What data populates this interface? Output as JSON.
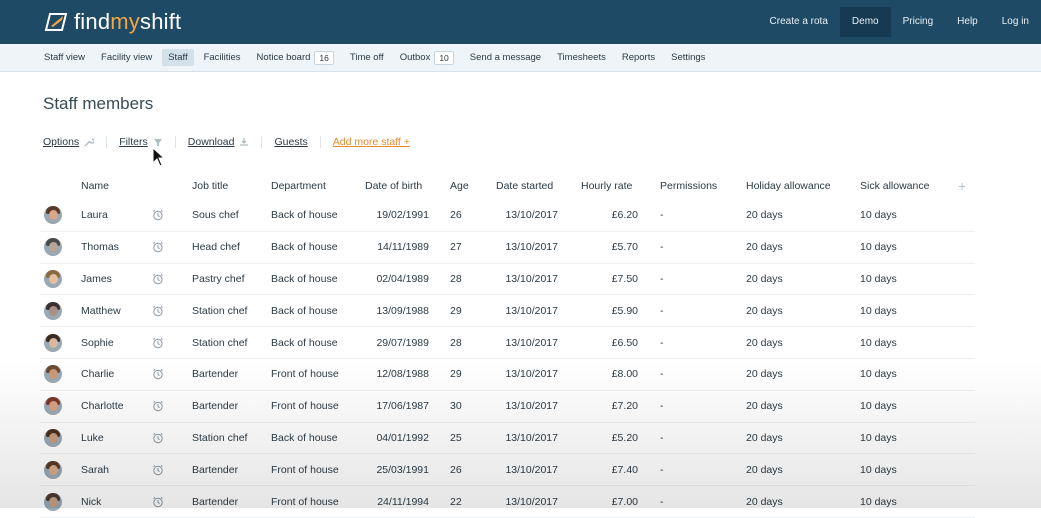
{
  "app": {
    "logo_text_prefix": "find",
    "logo_text_mid": "my",
    "logo_text_suffix": "shift",
    "accent_color": "#f3a443",
    "brand_color": "#1f4a66"
  },
  "topnav": [
    {
      "label": "Create a rota",
      "active": false
    },
    {
      "label": "Demo",
      "active": true
    },
    {
      "label": "Pricing",
      "active": false
    },
    {
      "label": "Help",
      "active": false
    },
    {
      "label": "Log in",
      "active": false
    }
  ],
  "subnav": [
    {
      "label": "Staff view",
      "count": null,
      "active": false
    },
    {
      "label": "Facility view",
      "count": null,
      "active": false
    },
    {
      "label": "Staff",
      "count": null,
      "active": true
    },
    {
      "label": "Facilities",
      "count": null,
      "active": false
    },
    {
      "label": "Notice board",
      "count": "16",
      "active": false
    },
    {
      "label": "Time off",
      "count": null,
      "active": false
    },
    {
      "label": "Outbox",
      "count": "10",
      "active": false
    },
    {
      "label": "Send a message",
      "count": null,
      "active": false
    },
    {
      "label": "Timesheets",
      "count": null,
      "active": false
    },
    {
      "label": "Reports",
      "count": null,
      "active": false
    },
    {
      "label": "Settings",
      "count": null,
      "active": false
    }
  ],
  "page": {
    "title": "Staff members"
  },
  "tools": {
    "options": "Options",
    "filters": "Filters",
    "download": "Download",
    "guests": "Guests",
    "add_staff": "Add more staff +"
  },
  "table": {
    "headers": {
      "name": "Name",
      "job": "Job title",
      "dept": "Department",
      "dob": "Date of birth",
      "age": "Age",
      "started": "Date started",
      "rate": "Hourly rate",
      "perm": "Permissions",
      "hol": "Holiday allowance",
      "sick": "Sick allowance",
      "plus": "+"
    },
    "rows": [
      {
        "name": "Laura",
        "job": "Sous chef",
        "dept": "Back of house",
        "dob": "19/02/1991",
        "age": "26",
        "started": "13/10/2017",
        "rate": "£6.20",
        "perm": "-",
        "hol": "20 days",
        "sick": "10 days",
        "skin": "#d9a88a",
        "hair": "#5a3a2a"
      },
      {
        "name": "Thomas",
        "job": "Head chef",
        "dept": "Back of house",
        "dob": "14/11/1989",
        "age": "27",
        "started": "13/10/2017",
        "rate": "£5.70",
        "perm": "-",
        "hol": "20 days",
        "sick": "10 days",
        "skin": "#b8a59a",
        "hair": "#4a4a4a"
      },
      {
        "name": "James",
        "job": "Pastry chef",
        "dept": "Back of house",
        "dob": "02/04/1989",
        "age": "28",
        "started": "13/10/2017",
        "rate": "£7.50",
        "perm": "-",
        "hol": "20 days",
        "sick": "10 days",
        "skin": "#e2c0a0",
        "hair": "#8a6a40"
      },
      {
        "name": "Matthew",
        "job": "Station chef",
        "dept": "Back of house",
        "dob": "13/09/1988",
        "age": "29",
        "started": "13/10/2017",
        "rate": "£5.90",
        "perm": "-",
        "hol": "20 days",
        "sick": "10 days",
        "skin": "#a89088",
        "hair": "#3a3030"
      },
      {
        "name": "Sophie",
        "job": "Station chef",
        "dept": "Back of house",
        "dob": "29/07/1989",
        "age": "28",
        "started": "13/10/2017",
        "rate": "£6.50",
        "perm": "-",
        "hol": "20 days",
        "sick": "10 days",
        "skin": "#d8b8a0",
        "hair": "#3a2a20"
      },
      {
        "name": "Charlie",
        "job": "Bartender",
        "dept": "Front of house",
        "dob": "12/08/1988",
        "age": "29",
        "started": "13/10/2017",
        "rate": "£8.00",
        "perm": "-",
        "hol": "20 days",
        "sick": "10 days",
        "skin": "#c99a7a",
        "hair": "#6a4a30"
      },
      {
        "name": "Charlotte",
        "job": "Bartender",
        "dept": "Front of house",
        "dob": "17/06/1987",
        "age": "30",
        "started": "13/10/2017",
        "rate": "£7.20",
        "perm": "-",
        "hol": "20 days",
        "sick": "10 days",
        "skin": "#d8a080",
        "hair": "#7a3a2a"
      },
      {
        "name": "Luke",
        "job": "Station chef",
        "dept": "Back of house",
        "dob": "04/01/1992",
        "age": "25",
        "started": "13/10/2017",
        "rate": "£5.20",
        "perm": "-",
        "hol": "20 days",
        "sick": "10 days",
        "skin": "#c89a80",
        "hair": "#4a3020"
      },
      {
        "name": "Sarah",
        "job": "Bartender",
        "dept": "Front of house",
        "dob": "25/03/1991",
        "age": "26",
        "started": "13/10/2017",
        "rate": "£7.40",
        "perm": "-",
        "hol": "20 days",
        "sick": "10 days",
        "skin": "#d9aa8a",
        "hair": "#5a3a28"
      },
      {
        "name": "Nick",
        "job": "Bartender",
        "dept": "Front of house",
        "dob": "24/11/1994",
        "age": "22",
        "started": "13/10/2017",
        "rate": "£7.00",
        "perm": "-",
        "hol": "20 days",
        "sick": "10 days",
        "skin": "#c8a088",
        "hair": "#4a3a30"
      }
    ]
  }
}
